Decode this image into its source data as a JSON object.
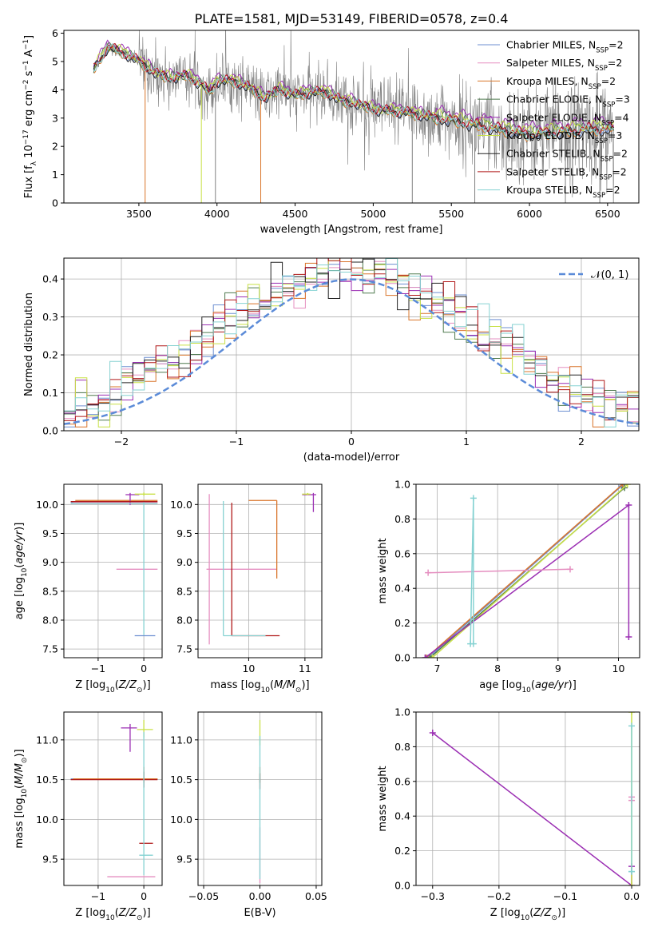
{
  "figure": {
    "title": "PLATE=1581, MJD=53149, FIBERID=0578, z=0.4"
  },
  "legend_entries": [
    {
      "label": "Chabrier MILES, N",
      "sub": "SSP",
      "suffix": "=2",
      "color": "#6d8fd1"
    },
    {
      "label": "Salpeter MILES, N",
      "sub": "SSP",
      "suffix": "=2",
      "color": "#e58fc0"
    },
    {
      "label": "Kroupa MILES, N",
      "sub": "SSP",
      "suffix": "=2",
      "color": "#d9742a"
    },
    {
      "label": "Chabrier ELODIE, N",
      "sub": "SSP",
      "suffix": "=3",
      "color": "#4f7a4f"
    },
    {
      "label": "Salpeter ELODIE, N",
      "sub": "SSP",
      "suffix": "=4",
      "color": "#9b2fb3"
    },
    {
      "label": "Kroupa ELODIE, N",
      "sub": "SSP",
      "suffix": "=3",
      "color": "#c8e046"
    },
    {
      "label": "Chabrier STELIB, N",
      "sub": "SSP",
      "suffix": "=2",
      "color": "#222222"
    },
    {
      "label": "Salpeter STELIB, N",
      "sub": "SSP",
      "suffix": "=2",
      "color": "#b01818"
    },
    {
      "label": "Kroupa STELIB, N",
      "sub": "SSP",
      "suffix": "=2",
      "color": "#86d2d2"
    }
  ],
  "chart_data": [
    {
      "id": "spectrum",
      "type": "line",
      "xlabel": "wavelength [Angstrom, rest frame]",
      "ylabel": "Flux [f_λ 10^-17 erg cm^-2 s^-1 A^-1]",
      "xlim": [
        3020,
        6700
      ],
      "ylim": [
        0,
        6.1
      ],
      "xticks": [
        3500,
        4000,
        4500,
        5000,
        5500,
        6000,
        6500
      ],
      "yticks": [
        0,
        1,
        2,
        3,
        4,
        5,
        6
      ],
      "grid": false,
      "legend_position": "upper right",
      "observed_color": "#808080",
      "continuum": {
        "x": [
          3210,
          3300,
          3400,
          3500,
          3600,
          3700,
          3800,
          3900,
          3950,
          4000,
          4100,
          4200,
          4300,
          4400,
          4500,
          4600,
          4700,
          4800,
          4900,
          5000,
          5200,
          5400,
          5600,
          5800,
          6000,
          6200,
          6400,
          6540
        ],
        "y": [
          4.7,
          5.5,
          5.3,
          5.0,
          4.6,
          4.4,
          4.5,
          4.2,
          3.9,
          4.3,
          4.3,
          4.1,
          3.7,
          4.0,
          3.8,
          3.9,
          3.9,
          3.6,
          3.5,
          3.3,
          3.2,
          3.0,
          2.8,
          2.6,
          2.4,
          2.5,
          2.6,
          2.6
        ]
      },
      "model_offsets": [
        0.0,
        0.02,
        -0.02,
        0.05,
        0.15,
        0.08,
        -0.03,
        0.03,
        0.0
      ]
    },
    {
      "id": "residuals",
      "type": "line",
      "xlabel": "(data-model)/error",
      "ylabel": "Normed distribution",
      "xlim": [
        -2.5,
        2.5
      ],
      "ylim": [
        0,
        0.455
      ],
      "xticks": [
        -2,
        -1,
        0,
        1,
        2
      ],
      "yticks": [
        0.0,
        0.1,
        0.2,
        0.3,
        0.4
      ],
      "grid": true,
      "reference_label": "𝒩(0, 1)",
      "reference_color": "#5b8bd8",
      "bin_width": 0.1
    },
    {
      "id": "age-vs-Z",
      "type": "scatter",
      "xlabel": "Z [log10(Z/Z⊙)]",
      "ylabel": "age  [log10(age/yr)]",
      "xlim": [
        -1.75,
        0.4
      ],
      "ylim": [
        7.35,
        10.35
      ],
      "xticks": [
        -1,
        0
      ],
      "yticks": [
        7.5,
        8.0,
        8.5,
        9.0,
        9.5,
        10.0
      ],
      "grid": true,
      "points": [
        {
          "series": 0,
          "x": 0.0,
          "y": 10.03,
          "xerr": [
            1.6,
            0.25
          ],
          "yerr": [
            0.0,
            0.02
          ]
        },
        {
          "series": 0,
          "x": 0.0,
          "y": 7.73,
          "xerr": [
            0.2,
            0.25
          ],
          "yerr": [
            0,
            0
          ]
        },
        {
          "series": 1,
          "x": 0.0,
          "y": 8.88,
          "xerr": [
            0.6,
            0.3
          ],
          "yerr": [
            0,
            0
          ]
        },
        {
          "series": 1,
          "x": 0.0,
          "y": 10.03,
          "xerr": [
            1.55,
            0.3
          ],
          "yerr": [
            0,
            0
          ]
        },
        {
          "series": 2,
          "x": 0.0,
          "y": 10.07,
          "xerr": [
            1.5,
            0.3
          ],
          "yerr": [
            0,
            0
          ]
        },
        {
          "series": 4,
          "x": -0.3,
          "y": 10.17,
          "xerr": [
            0.1,
            0.2
          ],
          "yerr": [
            0.18,
            0.03
          ]
        },
        {
          "series": 5,
          "x": 0.0,
          "y": 10.18,
          "xerr": [
            0.2,
            0.25
          ],
          "yerr": [
            0.03,
            0.03
          ]
        },
        {
          "series": 7,
          "x": 0.0,
          "y": 10.05,
          "xerr": [
            1.6,
            0.3
          ],
          "yerr": [
            0,
            0
          ]
        },
        {
          "series": 8,
          "x": 0.0,
          "y": 10.02,
          "xerr": [
            1.6,
            0.3
          ],
          "yerr": [
            2.28,
            0.02
          ]
        }
      ]
    },
    {
      "id": "age-vs-mass",
      "type": "scatter",
      "xlabel": "mass [log10(M/M⊙)]",
      "ylabel": "",
      "xlim": [
        9.1,
        11.3
      ],
      "ylim": [
        7.35,
        10.35
      ],
      "xticks": [
        10,
        11
      ],
      "yticks": [
        7.5,
        8.0,
        8.5,
        9.0,
        9.5,
        10.0
      ],
      "grid": true,
      "points": [
        {
          "series": 1,
          "x": 9.3,
          "y": 8.88,
          "xerr": [
            0.05,
            1.2
          ],
          "yerr": [
            1.3,
            1.3
          ]
        },
        {
          "series": 2,
          "x": 10.5,
          "y": 10.07,
          "xerr": [
            0.5,
            0.0
          ],
          "yerr": [
            1.35,
            0.0
          ]
        },
        {
          "series": 7,
          "x": 9.7,
          "y": 7.73,
          "xerr": [
            0.0,
            0.85
          ],
          "yerr": [
            0.0,
            2.3
          ]
        },
        {
          "series": 8,
          "x": 9.55,
          "y": 7.73,
          "xerr": [
            0.0,
            0.75
          ],
          "yerr": [
            0.0,
            2.33
          ]
        },
        {
          "series": 4,
          "x": 11.15,
          "y": 10.17,
          "xerr": [
            0.2,
            0.05
          ],
          "yerr": [
            0.3,
            0.03
          ]
        },
        {
          "series": 5,
          "x": 11.05,
          "y": 10.18,
          "xerr": [
            0.1,
            0.05
          ],
          "yerr": [
            0.02,
            0.02
          ]
        }
      ]
    },
    {
      "id": "weight-vs-age",
      "type": "line",
      "xlabel": "age  [log10(age/yr)]",
      "ylabel": "mass weight",
      "xlim": [
        6.65,
        10.35
      ],
      "ylim": [
        0,
        1.0
      ],
      "xticks": [
        7,
        8,
        9,
        10
      ],
      "yticks": [
        0.0,
        0.2,
        0.4,
        0.6,
        0.8,
        1.0
      ],
      "grid": true,
      "series": [
        {
          "series": 0,
          "x": [
            6.85,
            10.05
          ],
          "y": [
            0.0,
            0.99
          ]
        },
        {
          "series": 2,
          "x": [
            6.82,
            10.07
          ],
          "y": [
            0.0,
            1.0
          ]
        },
        {
          "series": 3,
          "x": [
            6.88,
            10.1
          ],
          "y": [
            0.0,
            0.98
          ]
        },
        {
          "series": 5,
          "x": [
            6.92,
            10.15
          ],
          "y": [
            0.0,
            1.0
          ]
        },
        {
          "series": 4,
          "x": [
            6.8,
            10.17,
            10.17
          ],
          "y": [
            0.0,
            0.88,
            0.12
          ]
        },
        {
          "series": 1,
          "x": [
            6.85,
            9.2
          ],
          "y": [
            0.49,
            0.51
          ]
        },
        {
          "series": 8,
          "x": [
            7.55,
            7.6,
            7.6
          ],
          "y": [
            0.08,
            0.92,
            0.08
          ]
        }
      ]
    },
    {
      "id": "mass-vs-Z",
      "type": "scatter",
      "xlabel": "Z [log10(Z/Z⊙)]",
      "ylabel": "mass [log10(M/M⊙)]",
      "xlim": [
        -1.75,
        0.4
      ],
      "ylim": [
        9.17,
        11.35
      ],
      "xticks": [
        -1,
        0
      ],
      "yticks": [
        9.5,
        10.0,
        10.5,
        11.0
      ],
      "grid": true,
      "points": [
        {
          "series": 0,
          "x": 0.0,
          "y": 10.51,
          "xerr": [
            1.6,
            0.3
          ],
          "yerr": [
            0,
            0
          ]
        },
        {
          "series": 2,
          "x": 0.0,
          "y": 10.51,
          "xerr": [
            1.55,
            0.3
          ],
          "yerr": [
            0.05,
            0.15
          ]
        },
        {
          "series": 7,
          "x": 0.0,
          "y": 10.5,
          "xerr": [
            1.6,
            0.3
          ],
          "yerr": [
            0.1,
            0.1
          ]
        },
        {
          "series": 7,
          "x": 0.05,
          "y": 9.7,
          "xerr": [
            0.15,
            0.15
          ],
          "yerr": [
            0,
            0
          ]
        },
        {
          "series": 8,
          "x": 0.05,
          "y": 9.55,
          "xerr": [
            0.15,
            0.15
          ],
          "yerr": [
            0,
            0
          ]
        },
        {
          "series": 1,
          "x": -0.1,
          "y": 9.28,
          "xerr": [
            0.7,
            0.35
          ],
          "yerr": [
            0,
            0
          ]
        },
        {
          "series": 4,
          "x": -0.3,
          "y": 11.15,
          "xerr": [
            0.2,
            0.15
          ],
          "yerr": [
            0.3,
            0.05
          ]
        },
        {
          "series": 5,
          "x": 0.0,
          "y": 11.13,
          "xerr": [
            0.15,
            0.2
          ],
          "yerr": [
            0.1,
            0.12
          ]
        },
        {
          "series": 8,
          "x": 0.0,
          "y": 10.2,
          "xerr": [
            0,
            0
          ],
          "yerr": [
            0.9,
            0.9
          ]
        }
      ]
    },
    {
      "id": "mass-vs-EBV",
      "type": "scatter",
      "xlabel": "E(B-V)",
      "ylabel": "",
      "xlim": [
        -0.055,
        0.055
      ],
      "ylim": [
        9.17,
        11.35
      ],
      "xticks": [
        -0.05,
        0.0,
        0.05
      ],
      "yticks": [
        9.5,
        10.0,
        10.5,
        11.0
      ],
      "grid": true,
      "points": [
        {
          "series": 5,
          "x": 0.0,
          "y": 11.13,
          "xerr": [
            0,
            0
          ],
          "yerr": [
            0.2,
            0.12
          ]
        },
        {
          "series": 2,
          "x": 0.0,
          "y": 10.51,
          "xerr": [
            0,
            0
          ],
          "yerr": [
            0.05,
            0.15
          ]
        },
        {
          "series": 7,
          "x": 0.0,
          "y": 10.5,
          "xerr": [
            0,
            0
          ],
          "yerr": [
            0.12,
            0.08
          ]
        },
        {
          "series": 1,
          "x": 0.0,
          "y": 9.3,
          "xerr": [
            0,
            0
          ],
          "yerr": [
            0.1,
            0.6
          ]
        },
        {
          "series": 8,
          "x": 0.0,
          "y": 9.55,
          "xerr": [
            0,
            0
          ],
          "yerr": [
            0.3,
            1.5
          ]
        }
      ]
    },
    {
      "id": "weight-vs-Z",
      "type": "line",
      "xlabel": "Z [log10(Z/Z⊙)]",
      "ylabel": "mass weight",
      "xlim": [
        -0.325,
        0.012
      ],
      "ylim": [
        0,
        1.0
      ],
      "xticks": [
        -0.3,
        -0.2,
        -0.1,
        0.0
      ],
      "yticks": [
        0.0,
        0.2,
        0.4,
        0.6,
        0.8,
        1.0
      ],
      "grid": true,
      "series": [
        {
          "series": 4,
          "x": [
            -0.3,
            0.0,
            0.0
          ],
          "y": [
            0.88,
            0.0,
            0.11
          ]
        },
        {
          "series": 5,
          "x": [
            0.0,
            0.0
          ],
          "y": [
            0.0,
            1.0
          ]
        },
        {
          "series": 1,
          "x": [
            0.0,
            0.0
          ],
          "y": [
            0.49,
            0.51
          ]
        },
        {
          "series": 8,
          "x": [
            0.0,
            0.0,
            0.0
          ],
          "y": [
            0.08,
            0.92,
            0.08
          ]
        }
      ]
    }
  ]
}
